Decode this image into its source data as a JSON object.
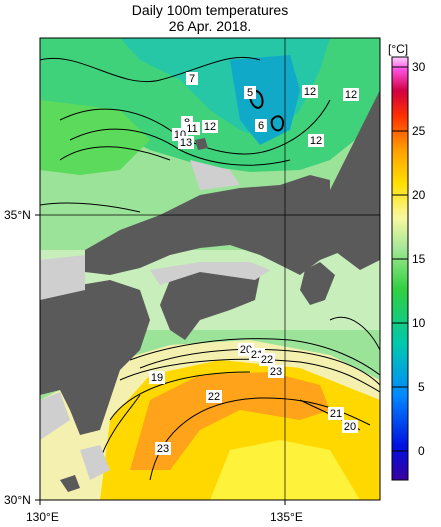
{
  "title_line1": "Daily 100m temperatures",
  "title_line2": "26 Apr. 2018.",
  "axes": {
    "lon_labels": [
      "130°E",
      "135°E"
    ],
    "lat_labels": [
      "35°N",
      "30°N"
    ]
  },
  "colorbar": {
    "unit": "[°C]",
    "ticks": [
      "0",
      "5",
      "10",
      "15",
      "20",
      "25",
      "30"
    ],
    "range": [
      -2,
      31
    ]
  },
  "contour_labels": [
    {
      "text": "7"
    },
    {
      "text": "5"
    },
    {
      "text": "12"
    },
    {
      "text": "12"
    },
    {
      "text": "8"
    },
    {
      "text": "11"
    },
    {
      "text": "12"
    },
    {
      "text": "6"
    },
    {
      "text": "10"
    },
    {
      "text": "13"
    },
    {
      "text": "12"
    },
    {
      "text": "20"
    },
    {
      "text": "21"
    },
    {
      "text": "22"
    },
    {
      "text": "23"
    },
    {
      "text": "19"
    },
    {
      "text": "22"
    },
    {
      "text": "21"
    },
    {
      "text": "20"
    },
    {
      "text": "23"
    }
  ],
  "colors": {
    "land": "#5a5a5a",
    "nodata": "#cccccc",
    "border": "#000000"
  }
}
